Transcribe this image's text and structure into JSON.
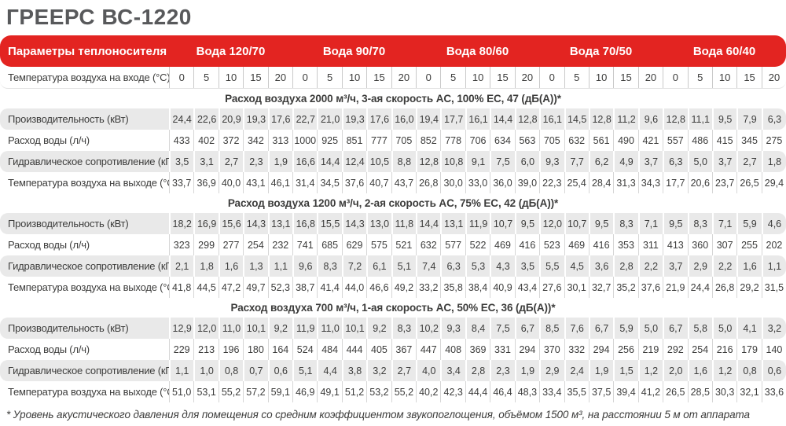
{
  "page": {
    "title": "ГРЕЕРС ВС-1220"
  },
  "colors": {
    "accent_red": "#e32421",
    "title_gray": "#58595b",
    "row_gray": "#e9e9e9",
    "text": "#3c3c3b"
  },
  "chart_data": {
    "type": "table",
    "title": "ГРЕЕРС ВС-1220"
  },
  "table": {
    "header": {
      "params_label": "Параметры теплоносителя (°C)",
      "groups": [
        "Вода 120/70",
        "Вода 90/70",
        "Вода 80/60",
        "Вода 70/50",
        "Вода 60/40"
      ],
      "inlet_label": "Температура воздуха на входе (°C)",
      "inlet_temps": [
        "0",
        "5",
        "10",
        "15",
        "20",
        "0",
        "5",
        "10",
        "15",
        "20",
        "0",
        "5",
        "10",
        "15",
        "20",
        "0",
        "5",
        "10",
        "15",
        "20",
        "0",
        "5",
        "10",
        "15",
        "20"
      ]
    },
    "row_labels": [
      "Производительность (кВт)",
      "Расход воды (л/ч)",
      "Гидравлическое сопротивление (кПа)",
      "Температура воздуха на выходе (°C)"
    ],
    "sections": [
      {
        "title": "Расход воздуха 2000 м³/ч, 3-ая скорость AC, 100% EC, 47 (дБ(А))*",
        "rows": [
          [
            "24,4",
            "22,6",
            "20,9",
            "19,3",
            "17,6",
            "22,7",
            "21,0",
            "19,3",
            "17,6",
            "16,0",
            "19,4",
            "17,7",
            "16,1",
            "14,4",
            "12,8",
            "16,1",
            "14,5",
            "12,8",
            "11,2",
            "9,6",
            "12,8",
            "11,1",
            "9,5",
            "7,9",
            "6,3"
          ],
          [
            "433",
            "402",
            "372",
            "342",
            "313",
            "1000",
            "925",
            "851",
            "777",
            "705",
            "852",
            "778",
            "706",
            "634",
            "563",
            "705",
            "632",
            "561",
            "490",
            "421",
            "557",
            "486",
            "415",
            "345",
            "275"
          ],
          [
            "3,5",
            "3,1",
            "2,7",
            "2,3",
            "1,9",
            "16,6",
            "14,4",
            "12,4",
            "10,5",
            "8,8",
            "12,8",
            "10,8",
            "9,1",
            "7,5",
            "6,0",
            "9,3",
            "7,7",
            "6,2",
            "4,9",
            "3,7",
            "6,3",
            "5,0",
            "3,7",
            "2,7",
            "1,8"
          ],
          [
            "33,7",
            "36,9",
            "40,0",
            "43,1",
            "46,1",
            "31,4",
            "34,5",
            "37,6",
            "40,7",
            "43,7",
            "26,8",
            "30,0",
            "33,0",
            "36,0",
            "39,0",
            "22,3",
            "25,4",
            "28,4",
            "31,3",
            "34,3",
            "17,7",
            "20,6",
            "23,7",
            "26,5",
            "29,4"
          ]
        ]
      },
      {
        "title": "Расход воздуха 1200 м³/ч, 2-ая скорость AC, 75% EC, 42 (дБ(А))*",
        "rows": [
          [
            "18,2",
            "16,9",
            "15,6",
            "14,3",
            "13,1",
            "16,8",
            "15,5",
            "14,3",
            "13,0",
            "11,8",
            "14,4",
            "13,1",
            "11,9",
            "10,7",
            "9,5",
            "12,0",
            "10,7",
            "9,5",
            "8,3",
            "7,1",
            "9,5",
            "8,3",
            "7,1",
            "5,9",
            "4,6"
          ],
          [
            "323",
            "299",
            "277",
            "254",
            "232",
            "741",
            "685",
            "629",
            "575",
            "521",
            "632",
            "577",
            "522",
            "469",
            "416",
            "523",
            "469",
            "416",
            "353",
            "311",
            "413",
            "360",
            "307",
            "255",
            "202"
          ],
          [
            "2,1",
            "1,8",
            "1,6",
            "1,3",
            "1,1",
            "9,6",
            "8,3",
            "7,2",
            "6,1",
            "5,1",
            "7,4",
            "6,3",
            "5,3",
            "4,3",
            "3,5",
            "5,5",
            "4,5",
            "3,6",
            "2,8",
            "2,2",
            "3,7",
            "2,9",
            "2,2",
            "1,6",
            "1,1"
          ],
          [
            "41,8",
            "44,5",
            "47,2",
            "49,7",
            "52,3",
            "38,7",
            "41,4",
            "44,0",
            "46,6",
            "49,2",
            "33,2",
            "35,8",
            "38,4",
            "40,9",
            "43,4",
            "27,6",
            "30,1",
            "32,7",
            "35,2",
            "37,6",
            "21,9",
            "24,4",
            "26,8",
            "29,2",
            "31,5"
          ]
        ]
      },
      {
        "title": "Расход воздуха 700 м³/ч, 1-ая скорость AC, 50% EC, 36 (дБ(А))*",
        "rows": [
          [
            "12,9",
            "12,0",
            "11,0",
            "10,1",
            "9,2",
            "11,9",
            "11,0",
            "10,1",
            "9,2",
            "8,3",
            "10,2",
            "9,3",
            "8,4",
            "7,5",
            "6,7",
            "8,5",
            "7,6",
            "6,7",
            "5,9",
            "5,0",
            "6,7",
            "5,8",
            "5,0",
            "4,1",
            "3,2"
          ],
          [
            "229",
            "213",
            "196",
            "180",
            "164",
            "524",
            "484",
            "444",
            "405",
            "367",
            "447",
            "408",
            "369",
            "331",
            "294",
            "370",
            "332",
            "294",
            "256",
            "219",
            "292",
            "254",
            "216",
            "179",
            "140"
          ],
          [
            "1,1",
            "1,0",
            "0,8",
            "0,7",
            "0,6",
            "5,1",
            "4,4",
            "3,8",
            "3,2",
            "2,7",
            "4,0",
            "3,4",
            "2,8",
            "2,3",
            "1,9",
            "2,9",
            "2,4",
            "1,9",
            "1,5",
            "1,2",
            "2,0",
            "1,6",
            "1,2",
            "0,8",
            "0,6"
          ],
          [
            "51,0",
            "53,1",
            "55,2",
            "57,2",
            "59,1",
            "46,9",
            "49,1",
            "51,2",
            "53,2",
            "55,2",
            "40,2",
            "42,3",
            "44,4",
            "46,4",
            "48,3",
            "33,4",
            "35,5",
            "37,5",
            "39,4",
            "41,2",
            "26,5",
            "28,5",
            "30,3",
            "32,1",
            "33,6"
          ]
        ]
      }
    ],
    "footnote": "* Уровень акустического давления для помещения со средним коэффициентом звукопоглощения, объёмом 1500 м³, на расстоянии 5 м от аппарата"
  }
}
